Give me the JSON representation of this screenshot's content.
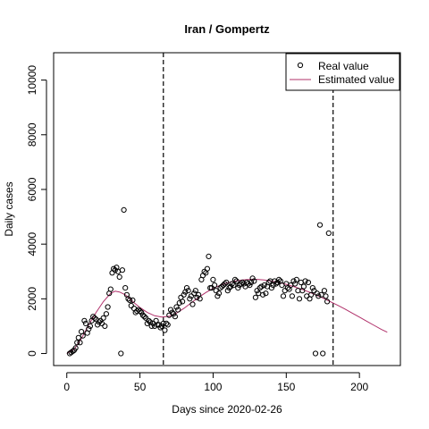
{
  "chart_data": {
    "type": "scatter",
    "title": "Iran / Gompertz",
    "xlabel": "Days since 2020-02-26",
    "ylabel": "Daily cases",
    "xlim": [
      -9,
      228
    ],
    "ylim": [
      -440,
      11000
    ],
    "x_ticks": [
      0,
      50,
      100,
      150,
      200
    ],
    "y_ticks": [
      0,
      2000,
      4000,
      6000,
      8000,
      10000
    ],
    "x_tick_labels": [
      "0",
      "50",
      "100",
      "150",
      "200"
    ],
    "y_tick_labels": [
      "0",
      "2000",
      "4000",
      "6000",
      "8000",
      "10000"
    ],
    "vlines": [
      66,
      182
    ],
    "grid": false,
    "legend_position": "top-right",
    "colors": {
      "real": "#000000",
      "estimated": "#b0306a",
      "frame": "#000000"
    },
    "series": [
      {
        "name": "Real value",
        "style": "points",
        "points": [
          [
            2,
            0
          ],
          [
            3,
            40
          ],
          [
            4,
            80
          ],
          [
            5,
            120
          ],
          [
            6,
            200
          ],
          [
            7,
            400
          ],
          [
            8,
            580
          ],
          [
            9,
            400
          ],
          [
            10,
            800
          ],
          [
            11,
            650
          ],
          [
            12,
            1200
          ],
          [
            13,
            1100
          ],
          [
            14,
            750
          ],
          [
            15,
            900
          ],
          [
            16,
            1000
          ],
          [
            17,
            1200
          ],
          [
            18,
            1350
          ],
          [
            19,
            1300
          ],
          [
            20,
            1250
          ],
          [
            21,
            1050
          ],
          [
            22,
            1150
          ],
          [
            23,
            1200
          ],
          [
            24,
            1100
          ],
          [
            25,
            1300
          ],
          [
            26,
            1000
          ],
          [
            27,
            1450
          ],
          [
            28,
            1700
          ],
          [
            29,
            2200
          ],
          [
            30,
            2350
          ],
          [
            31,
            2950
          ],
          [
            32,
            3100
          ],
          [
            33,
            3050
          ],
          [
            34,
            3150
          ],
          [
            35,
            3000
          ],
          [
            36,
            2800
          ],
          [
            37,
            0
          ],
          [
            38,
            3050
          ],
          [
            39,
            5250
          ],
          [
            40,
            2400
          ],
          [
            41,
            2150
          ],
          [
            42,
            2000
          ],
          [
            43,
            1950
          ],
          [
            44,
            1750
          ],
          [
            45,
            1950
          ],
          [
            46,
            1650
          ],
          [
            47,
            1500
          ],
          [
            48,
            1550
          ],
          [
            49,
            1600
          ],
          [
            50,
            1550
          ],
          [
            51,
            1500
          ],
          [
            52,
            1400
          ],
          [
            53,
            1350
          ],
          [
            54,
            1300
          ],
          [
            55,
            1100
          ],
          [
            56,
            1200
          ],
          [
            57,
            1150
          ],
          [
            58,
            1000
          ],
          [
            59,
            1100
          ],
          [
            60,
            1000
          ],
          [
            61,
            1200
          ],
          [
            62,
            1050
          ],
          [
            63,
            1050
          ],
          [
            64,
            950
          ],
          [
            65,
            1000
          ],
          [
            66,
            1100
          ],
          [
            67,
            850
          ],
          [
            68,
            1100
          ],
          [
            69,
            1050
          ],
          [
            70,
            1400
          ],
          [
            71,
            1600
          ],
          [
            72,
            1500
          ],
          [
            73,
            1450
          ],
          [
            74,
            1350
          ],
          [
            75,
            1700
          ],
          [
            76,
            1600
          ],
          [
            77,
            1850
          ],
          [
            78,
            2050
          ],
          [
            79,
            1900
          ],
          [
            80,
            2150
          ],
          [
            81,
            2250
          ],
          [
            82,
            2400
          ],
          [
            83,
            2300
          ],
          [
            84,
            2000
          ],
          [
            85,
            2100
          ],
          [
            86,
            1800
          ],
          [
            87,
            2200
          ],
          [
            88,
            2300
          ],
          [
            89,
            2050
          ],
          [
            90,
            2150
          ],
          [
            91,
            2000
          ],
          [
            92,
            2700
          ],
          [
            93,
            2850
          ],
          [
            94,
            3000
          ],
          [
            95,
            2950
          ],
          [
            96,
            3100
          ],
          [
            97,
            3550
          ],
          [
            98,
            2400
          ],
          [
            99,
            2400
          ],
          [
            100,
            2700
          ],
          [
            101,
            2500
          ],
          [
            102,
            2300
          ],
          [
            103,
            2100
          ],
          [
            104,
            2200
          ],
          [
            105,
            2400
          ],
          [
            106,
            2450
          ],
          [
            107,
            2500
          ],
          [
            108,
            2550
          ],
          [
            109,
            2600
          ],
          [
            110,
            2300
          ],
          [
            111,
            2400
          ],
          [
            112,
            2450
          ],
          [
            113,
            2550
          ],
          [
            114,
            2500
          ],
          [
            115,
            2700
          ],
          [
            116,
            2650
          ],
          [
            117,
            2400
          ],
          [
            118,
            2500
          ],
          [
            119,
            2550
          ],
          [
            120,
            2600
          ],
          [
            121,
            2550
          ],
          [
            122,
            2450
          ],
          [
            123,
            2600
          ],
          [
            124,
            2550
          ],
          [
            125,
            2500
          ],
          [
            126,
            2600
          ],
          [
            127,
            2750
          ],
          [
            128,
            2650
          ],
          [
            129,
            2050
          ],
          [
            130,
            2300
          ],
          [
            131,
            2200
          ],
          [
            132,
            2400
          ],
          [
            133,
            2450
          ],
          [
            134,
            2150
          ],
          [
            135,
            2500
          ],
          [
            136,
            2200
          ],
          [
            137,
            2450
          ],
          [
            138,
            2600
          ],
          [
            139,
            2650
          ],
          [
            140,
            2400
          ],
          [
            141,
            2500
          ],
          [
            142,
            2650
          ],
          [
            143,
            2550
          ],
          [
            144,
            2600
          ],
          [
            145,
            2700
          ],
          [
            146,
            2650
          ],
          [
            147,
            2500
          ],
          [
            148,
            2100
          ],
          [
            149,
            2300
          ],
          [
            150,
            2550
          ],
          [
            151,
            2400
          ],
          [
            152,
            2350
          ],
          [
            153,
            2500
          ],
          [
            154,
            2100
          ],
          [
            155,
            2650
          ],
          [
            156,
            2550
          ],
          [
            157,
            2700
          ],
          [
            158,
            2300
          ],
          [
            159,
            2000
          ],
          [
            160,
            2600
          ],
          [
            161,
            2300
          ],
          [
            162,
            2450
          ],
          [
            163,
            2650
          ],
          [
            164,
            2100
          ],
          [
            165,
            2600
          ],
          [
            166,
            2000
          ],
          [
            167,
            2150
          ],
          [
            168,
            2400
          ],
          [
            169,
            2300
          ],
          [
            170,
            0
          ],
          [
            171,
            2200
          ],
          [
            172,
            2100
          ],
          [
            173,
            4700
          ],
          [
            174,
            2150
          ],
          [
            175,
            0
          ],
          [
            176,
            2300
          ],
          [
            177,
            2100
          ],
          [
            178,
            1900
          ],
          [
            179,
            4400
          ]
        ]
      },
      {
        "name": "Estimated value",
        "style": "line",
        "points": [
          [
            0,
            0
          ],
          [
            5,
            150
          ],
          [
            10,
            550
          ],
          [
            15,
            1050
          ],
          [
            20,
            1500
          ],
          [
            25,
            1900
          ],
          [
            30,
            2200
          ],
          [
            33,
            2280
          ],
          [
            36,
            2250
          ],
          [
            40,
            2150
          ],
          [
            45,
            1900
          ],
          [
            50,
            1680
          ],
          [
            55,
            1500
          ],
          [
            60,
            1380
          ],
          [
            65,
            1330
          ],
          [
            70,
            1360
          ],
          [
            75,
            1480
          ],
          [
            80,
            1650
          ],
          [
            85,
            1850
          ],
          [
            90,
            2050
          ],
          [
            95,
            2230
          ],
          [
            100,
            2380
          ],
          [
            105,
            2500
          ],
          [
            110,
            2590
          ],
          [
            115,
            2650
          ],
          [
            120,
            2690
          ],
          [
            125,
            2710
          ],
          [
            130,
            2710
          ],
          [
            135,
            2690
          ],
          [
            140,
            2650
          ],
          [
            145,
            2600
          ],
          [
            150,
            2530
          ],
          [
            155,
            2450
          ],
          [
            160,
            2360
          ],
          [
            165,
            2260
          ],
          [
            170,
            2150
          ],
          [
            175,
            2030
          ],
          [
            180,
            1900
          ],
          [
            185,
            1770
          ],
          [
            190,
            1630
          ],
          [
            195,
            1480
          ],
          [
            200,
            1330
          ],
          [
            205,
            1180
          ],
          [
            210,
            1030
          ],
          [
            215,
            880
          ],
          [
            219,
            780
          ]
        ]
      }
    ]
  }
}
